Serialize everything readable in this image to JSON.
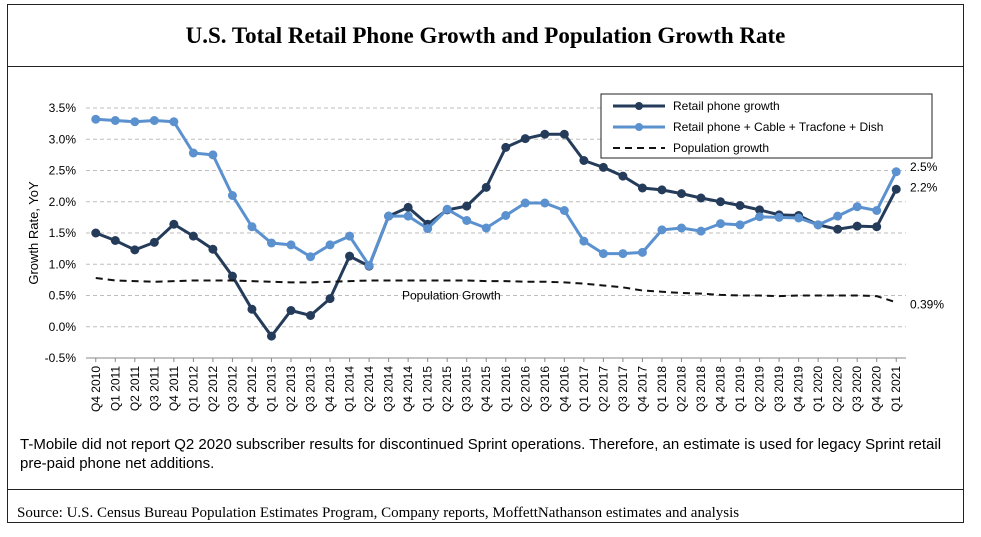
{
  "title": "U.S. Total Retail Phone Growth and Population Growth Rate",
  "note": "T-Mobile did not report Q2 2020 subscriber results for discontinued Sprint operations. Therefore, an estimate is used for legacy Sprint retail pre-paid phone net additions.",
  "source": "Source: U.S. Census Bureau Population Estimates Program, Company reports, MoffettNathanson estimates and analysis",
  "colors": {
    "dark": "#243b5a",
    "light": "#5b91cf",
    "dashed": "#111111",
    "grid": "#bdbdbd"
  },
  "chart_data": {
    "type": "line",
    "ylabel": "Growth Rate, YoY",
    "xlabel": "",
    "ylim": [
      -0.5,
      3.5
    ],
    "yticks": [
      "-0.5%",
      "0.0%",
      "0.5%",
      "1.0%",
      "1.5%",
      "2.0%",
      "2.5%",
      "3.0%",
      "3.5%"
    ],
    "grid": "horizontal dashed",
    "legend_position": "top-right",
    "categories": [
      "Q4 2010",
      "Q1 2011",
      "Q2 2011",
      "Q3 2011",
      "Q4 2011",
      "Q1 2012",
      "Q2 2012",
      "Q3 2012",
      "Q4 2012",
      "Q1 2013",
      "Q2 2013",
      "Q3 2013",
      "Q4 2013",
      "Q1 2014",
      "Q2 2014",
      "Q3 2014",
      "Q4 2014",
      "Q1 2015",
      "Q2 2015",
      "Q3 2015",
      "Q4 2015",
      "Q1 2016",
      "Q2 2016",
      "Q3 2016",
      "Q4 2016",
      "Q1 2017",
      "Q2 2017",
      "Q3 2017",
      "Q4 2017",
      "Q1 2018",
      "Q2 2018",
      "Q3 2018",
      "Q4 2018",
      "Q1 2019",
      "Q2 2019",
      "Q3 2019",
      "Q4 2019",
      "Q1 2020",
      "Q2 2020",
      "Q3 2020",
      "Q4 2020",
      "Q1 2021"
    ],
    "series": [
      {
        "name": "Retail phone growth",
        "style": "solid-marker",
        "color": "#243b5a",
        "values": [
          1.5,
          1.38,
          1.23,
          1.35,
          1.64,
          1.45,
          1.24,
          0.81,
          0.28,
          -0.15,
          0.26,
          0.18,
          0.45,
          1.13,
          0.97,
          1.77,
          1.91,
          1.64,
          1.87,
          1.93,
          2.23,
          2.87,
          3.01,
          3.08,
          3.08,
          2.66,
          2.55,
          2.41,
          2.22,
          2.19,
          2.13,
          2.06,
          2.0,
          1.94,
          1.87,
          1.79,
          1.78,
          1.63,
          1.56,
          1.61,
          1.6,
          2.2
        ]
      },
      {
        "name": "Retail phone + Cable + Tracfone + Dish",
        "style": "solid-marker",
        "color": "#5b91cf",
        "values": [
          3.32,
          3.3,
          3.28,
          3.3,
          3.28,
          2.78,
          2.75,
          2.1,
          1.6,
          1.34,
          1.31,
          1.12,
          1.31,
          1.45,
          0.98,
          1.77,
          1.77,
          1.57,
          1.88,
          1.7,
          1.58,
          1.78,
          1.98,
          1.98,
          1.86,
          1.37,
          1.17,
          1.17,
          1.19,
          1.55,
          1.58,
          1.53,
          1.65,
          1.63,
          1.76,
          1.75,
          1.74,
          1.63,
          1.77,
          1.92,
          1.86,
          2.48
        ]
      },
      {
        "name": "Population growth",
        "style": "dashed",
        "color": "#111111",
        "values": [
          0.78,
          0.74,
          0.73,
          0.72,
          0.73,
          0.74,
          0.74,
          0.74,
          0.73,
          0.72,
          0.71,
          0.71,
          0.72,
          0.73,
          0.74,
          0.74,
          0.74,
          0.74,
          0.74,
          0.74,
          0.73,
          0.73,
          0.72,
          0.72,
          0.71,
          0.69,
          0.66,
          0.63,
          0.58,
          0.56,
          0.54,
          0.53,
          0.51,
          0.5,
          0.5,
          0.49,
          0.5,
          0.5,
          0.5,
          0.5,
          0.49,
          0.39
        ]
      }
    ],
    "end_labels": [
      "2.5%",
      "2.2%",
      "0.39%"
    ],
    "annotation": "Population Growth"
  }
}
